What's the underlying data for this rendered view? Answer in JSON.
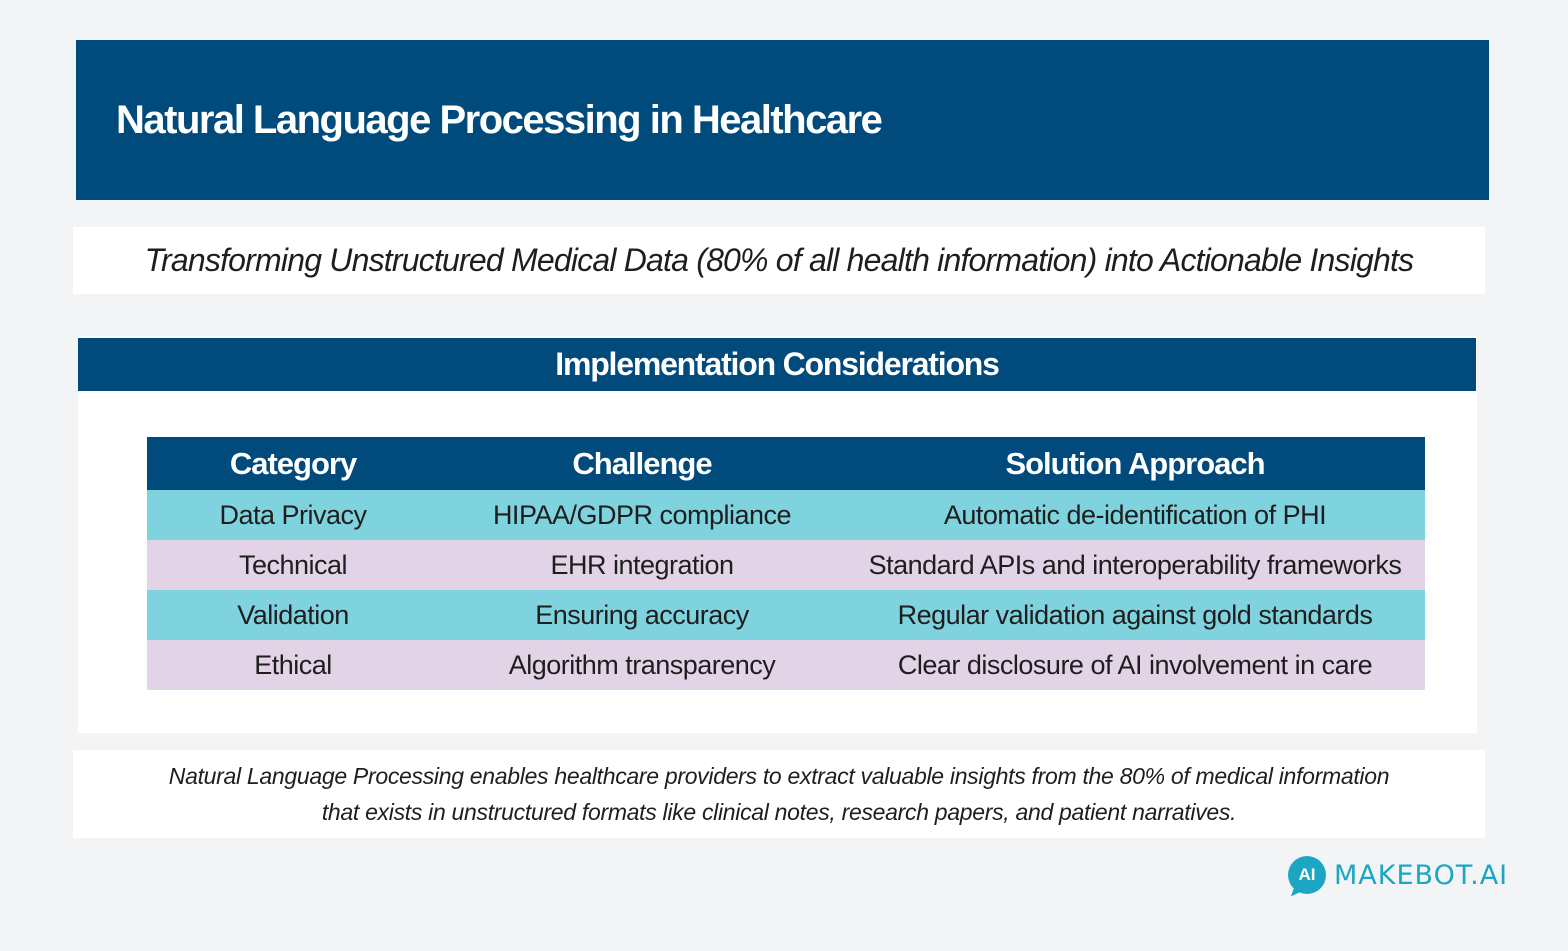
{
  "header": {
    "title": "Natural Language Processing in Healthcare"
  },
  "subtitle": "Transforming Unstructured Medical Data (80% of all health information) into Actionable Insights",
  "panel": {
    "title": "Implementation Considerations",
    "table": {
      "columns": [
        "Category",
        "Challenge",
        "Solution Approach"
      ],
      "rows": [
        [
          "Data Privacy",
          "HIPAA/GDPR compliance",
          "Automatic de-identification of PHI"
        ],
        [
          "Technical",
          "EHR integration",
          "Standard APIs and interoperability frameworks"
        ],
        [
          "Validation",
          "Ensuring accuracy",
          "Regular validation against gold standards"
        ],
        [
          "Ethical",
          "Algorithm transparency",
          "Clear disclosure of AI involvement in care"
        ]
      ]
    }
  },
  "footer": {
    "line1": "Natural Language Processing enables healthcare providers to extract valuable insights from the 80% of medical information",
    "line2": "that exists in unstructured formats like clinical notes, research papers, and patient narratives."
  },
  "logo": {
    "mark": "AI",
    "text": "MAKEBOT.AI",
    "icon": "chat-bubble-icon",
    "color": "#1ca6c4"
  },
  "colors": {
    "navy": "#004a7c",
    "teal_row": "#7fd3de",
    "lavender_row": "#e2d3e6"
  }
}
